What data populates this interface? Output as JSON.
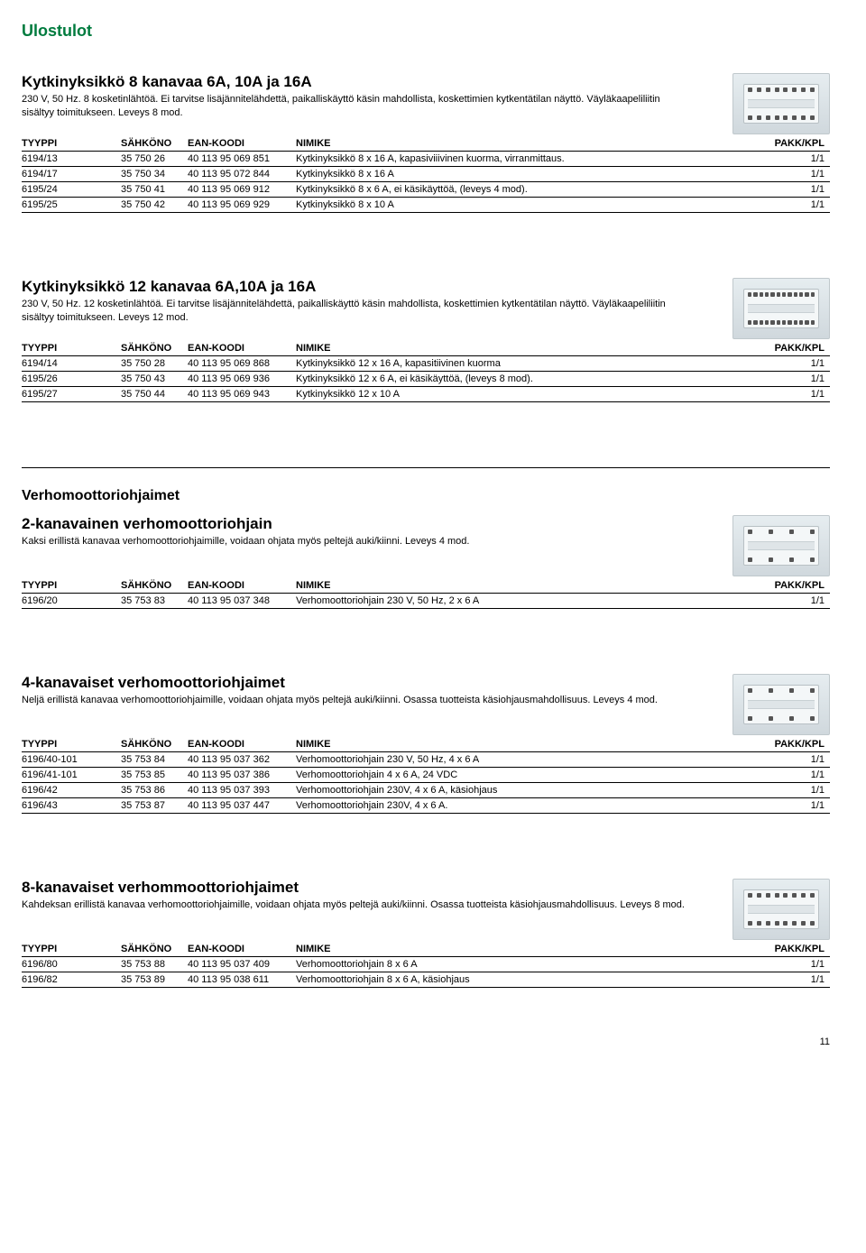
{
  "page_title": "Ulostulot",
  "page_number": "11",
  "table_headers": {
    "tyyppi": "TYYPPI",
    "sahkono": "SÄHKÖNO",
    "ean": "EAN-KOODI",
    "nimike": "NIMIKE",
    "pakk": "PAKK/KPL"
  },
  "sections": [
    {
      "heading": "Kytkinyksikkö 8 kanavaa 6A, 10A ja 16A",
      "desc": "230 V, 50 Hz. 8 kosketinlähtöä. Ei tarvitse lisäjännitelähdettä, paikalliskäyttö käsin mahdollista, koskettimien kytkentätilan näyttö. Väyläkaapeliliitin sisältyy toimitukseen. Leveys 8 mod.",
      "dots": 8,
      "rows": [
        {
          "tyyppi": "6194/13",
          "sahkono": "35 750 26",
          "ean": "40 113 95 069 851",
          "nimike": "Kytkinyksikkö 8 x 16 A, kapasiviiivinen kuorma, virranmittaus.",
          "pakk": "1/1"
        },
        {
          "tyyppi": "6194/17",
          "sahkono": "35 750 34",
          "ean": "40 113 95 072 844",
          "nimike": "Kytkinyksikkö 8 x 16 A",
          "pakk": "1/1"
        },
        {
          "tyyppi": "6195/24",
          "sahkono": "35 750 41",
          "ean": "40 113 95 069 912",
          "nimike": "Kytkinyksikkö 8 x 6 A, ei käsikäyttöä, (leveys 4 mod).",
          "pakk": "1/1"
        },
        {
          "tyyppi": "6195/25",
          "sahkono": "35 750 42",
          "ean": "40 113 95 069 929",
          "nimike": "Kytkinyksikkö 8 x 10 A",
          "pakk": "1/1"
        }
      ]
    },
    {
      "heading": "Kytkinyksikkö 12 kanavaa 6A,10A ja 16A",
      "desc": "230 V, 50 Hz. 12 kosketinlähtöä. Ei tarvitse lisäjännitelähdettä, paikalliskäyttö käsin mahdollista, koskettimien kytkentätilan näyttö. Väyläkaapeliliitin sisältyy toimitukseen. Leveys 12 mod.",
      "dots": 12,
      "rows": [
        {
          "tyyppi": "6194/14",
          "sahkono": "35 750 28",
          "ean": "40 113 95 069 868",
          "nimike": "Kytkinyksikkö 12 x 16 A, kapasitiivinen kuorma",
          "pakk": "1/1"
        },
        {
          "tyyppi": "6195/26",
          "sahkono": "35 750 43",
          "ean": "40 113 95 069 936",
          "nimike": "Kytkinyksikkö 12 x 6 A, ei käsikäyttöä, (leveys 8 mod).",
          "pakk": "1/1"
        },
        {
          "tyyppi": "6195/27",
          "sahkono": "35 750 44",
          "ean": "40 113 95 069 943",
          "nimike": "Kytkinyksikkö 12 x 10 A",
          "pakk": "1/1"
        }
      ]
    },
    {
      "subheader": "Verhomoottoriohjaimet",
      "heading": "2-kanavainen verhomoottoriohjain",
      "desc": "Kaksi erillistä kanavaa verhomoottoriohjaimille, voidaan ohjata myös peltejä auki/kiinni. Leveys 4 mod.",
      "dots": 4,
      "rows": [
        {
          "tyyppi": "6196/20",
          "sahkono": "35 753 83",
          "ean": "40 113 95 037 348",
          "nimike": "Verhomoottoriohjain 230 V, 50 Hz, 2 x 6 A",
          "pakk": "1/1"
        }
      ]
    },
    {
      "heading": "4-kanavaiset verhomoottoriohjaimet",
      "desc": "Neljä erillistä kanavaa verhomoottoriohjaimille, voidaan ohjata myös peltejä auki/kiinni. Osassa tuotteista käsiohjausmahdollisuus. Leveys 4 mod.",
      "dots": 4,
      "rows": [
        {
          "tyyppi": "6196/40-101",
          "sahkono": "35 753 84",
          "ean": "40 113 95 037 362",
          "nimike": "Verhomoottoriohjain 230 V, 50 Hz, 4 x 6 A",
          "pakk": "1/1"
        },
        {
          "tyyppi": "6196/41-101",
          "sahkono": "35 753 85",
          "ean": "40 113 95 037 386",
          "nimike": "Verhomoottoriohjain 4 x 6 A, 24 VDC",
          "pakk": "1/1"
        },
        {
          "tyyppi": "6196/42",
          "sahkono": "35 753 86",
          "ean": "40 113 95 037 393",
          "nimike": "Verhomoottoriohjain 230V, 4 x 6 A, käsiohjaus",
          "pakk": "1/1"
        },
        {
          "tyyppi": "6196/43",
          "sahkono": "35 753 87",
          "ean": "40 113 95 037 447",
          "nimike": "Verhomoottoriohjain 230V, 4 x 6 A.",
          "pakk": "1/1"
        }
      ]
    },
    {
      "heading": "8-kanavaiset verhommoottoriohjaimet",
      "desc": "Kahdeksan erillistä kanavaa verhomoottoriohjaimille, voidaan ohjata myös peltejä auki/kiinni. Osassa tuotteista käsiohjausmahdollisuus. Leveys 8 mod.",
      "dots": 8,
      "rows": [
        {
          "tyyppi": "6196/80",
          "sahkono": "35 753 88",
          "ean": "40 113 95 037 409",
          "nimike": "Verhomoottoriohjain 8 x 6 A",
          "pakk": "1/1"
        },
        {
          "tyyppi": "6196/82",
          "sahkono": "35 753 89",
          "ean": "40 113 95 038 611",
          "nimike": "Verhomoottoriohjain 8 x 6 A, käsiohjaus",
          "pakk": "1/1"
        }
      ]
    }
  ]
}
